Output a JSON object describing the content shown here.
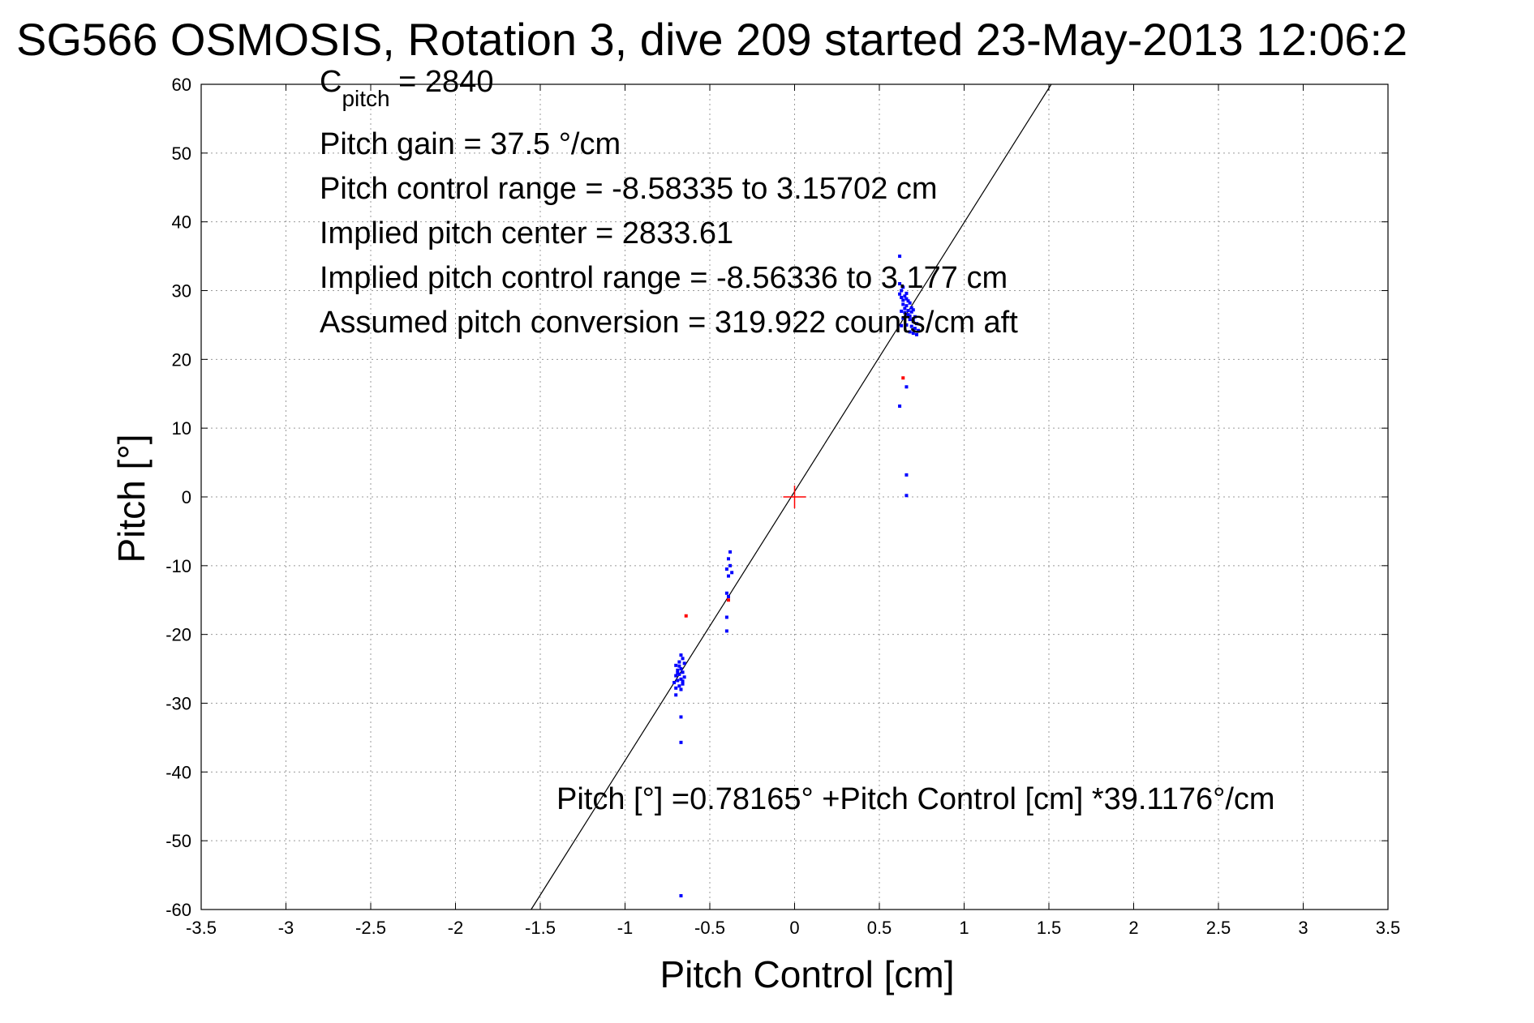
{
  "chart_data": {
    "type": "scatter",
    "title": "SG566 OSMOSIS, Rotation 3, dive 209 started 23-May-2013 12:06:2",
    "xlabel": "Pitch Control [cm]",
    "ylabel": "Pitch [°]",
    "xlim": [
      -3.5,
      3.5
    ],
    "ylim": [
      -60,
      60
    ],
    "grid": true,
    "xticks": [
      -3.5,
      -3,
      -2.5,
      -2,
      -1.5,
      -1,
      -0.5,
      0,
      0.5,
      1,
      1.5,
      2,
      2.5,
      3,
      3.5
    ],
    "xtick_labels": [
      "-3.5",
      "-3",
      "-2.5",
      "-2",
      "-1.5",
      "-1",
      "-0.5",
      "0",
      "0.5",
      "1",
      "1.5",
      "2",
      "2.5",
      "3",
      "3.5"
    ],
    "yticks": [
      60,
      50,
      40,
      30,
      20,
      10,
      0,
      -10,
      -20,
      -30,
      -40,
      -50,
      -60
    ],
    "ytick_labels": [
      "60",
      "50",
      "40",
      "30",
      "20",
      "10",
      "0",
      "-10",
      "-20",
      "-30",
      "-40",
      "-50",
      "-60"
    ],
    "annotations": {
      "c_pitch_base": "C",
      "c_pitch_sub": "pitch",
      "c_pitch_value": " = 2840",
      "pitch_gain": "Pitch gain = 37.5 °/cm",
      "pitch_control_range": "Pitch control range = -8.58335 to 3.15702 cm",
      "implied_pitch_center": "Implied pitch center = 2833.61",
      "implied_pitch_control_range": "Implied pitch control range = -8.56336 to 3.177 cm",
      "assumed_pitch_conversion": "Assumed pitch conversion = 319.922 counts/cm aft",
      "fit_equation": "Pitch [°] =0.78165° +Pitch Control [cm] *39.1176°/cm"
    },
    "fit": {
      "intercept": 0.78165,
      "slope": 39.1176,
      "color": "#000000"
    },
    "center_marker": {
      "x": 0,
      "y": 0,
      "color": "#ff0000"
    },
    "series": [
      {
        "color": "#0000ff",
        "points": [
          [
            0.62,
            35
          ],
          [
            0.62,
            31
          ],
          [
            0.63,
            30
          ],
          [
            0.64,
            30.5
          ],
          [
            0.62,
            29.5
          ],
          [
            0.63,
            29
          ],
          [
            0.65,
            29.2
          ],
          [
            0.66,
            28.8
          ],
          [
            0.67,
            28.5
          ],
          [
            0.68,
            28.2
          ],
          [
            0.64,
            28
          ],
          [
            0.66,
            27.8
          ],
          [
            0.69,
            27.5
          ],
          [
            0.7,
            27.2
          ],
          [
            0.63,
            27
          ],
          [
            0.65,
            26.8
          ],
          [
            0.67,
            26.5
          ],
          [
            0.71,
            26.2
          ],
          [
            0.64,
            26
          ],
          [
            0.68,
            25.8
          ],
          [
            0.7,
            25.5
          ],
          [
            0.72,
            25.2
          ],
          [
            0.66,
            25
          ],
          [
            0.69,
            24.8
          ],
          [
            0.71,
            24.5
          ],
          [
            0.73,
            24.2
          ],
          [
            0.68,
            24
          ],
          [
            0.7,
            23.8
          ],
          [
            0.72,
            23.6
          ],
          [
            0.65,
            27.4
          ],
          [
            0.67,
            27.1
          ],
          [
            0.69,
            26.9
          ],
          [
            0.64,
            28.6
          ],
          [
            0.66,
            29.6
          ],
          [
            0.68,
            26.3
          ],
          [
            0.7,
            25.9
          ],
          [
            0.63,
            24.9
          ],
          [
            0.62,
            13.2
          ],
          [
            0.66,
            16
          ],
          [
            0.66,
            3.2
          ],
          [
            0.66,
            0.2
          ],
          [
            -0.38,
            -8
          ],
          [
            -0.39,
            -9
          ],
          [
            -0.38,
            -10
          ],
          [
            -0.4,
            -10.5
          ],
          [
            -0.37,
            -11
          ],
          [
            -0.39,
            -11.5
          ],
          [
            -0.4,
            -14
          ],
          [
            -0.39,
            -14.5
          ],
          [
            -0.4,
            -17.5
          ],
          [
            -0.4,
            -19.5
          ],
          [
            -0.67,
            -23
          ],
          [
            -0.66,
            -23.5
          ],
          [
            -0.68,
            -24
          ],
          [
            -0.65,
            -24.2
          ],
          [
            -0.7,
            -24.5
          ],
          [
            -0.67,
            -25
          ],
          [
            -0.69,
            -25.2
          ],
          [
            -0.66,
            -25.5
          ],
          [
            -0.68,
            -25.8
          ],
          [
            -0.7,
            -26
          ],
          [
            -0.65,
            -26.2
          ],
          [
            -0.67,
            -26.5
          ],
          [
            -0.69,
            -26.7
          ],
          [
            -0.71,
            -27
          ],
          [
            -0.66,
            -27.2
          ],
          [
            -0.68,
            -27.5
          ],
          [
            -0.7,
            -27.8
          ],
          [
            -0.67,
            -28
          ],
          [
            -0.69,
            -25.6
          ],
          [
            -0.66,
            -26.8
          ],
          [
            -0.68,
            -24.6
          ],
          [
            -0.7,
            -28.8
          ],
          [
            -0.67,
            -32
          ],
          [
            -0.67,
            -35.7
          ],
          [
            -0.67,
            -58
          ]
        ]
      },
      {
        "color": "#ff0000",
        "points": [
          [
            0.64,
            17.3
          ],
          [
            -0.64,
            -17.3
          ],
          [
            -0.39,
            -15
          ]
        ]
      }
    ]
  }
}
